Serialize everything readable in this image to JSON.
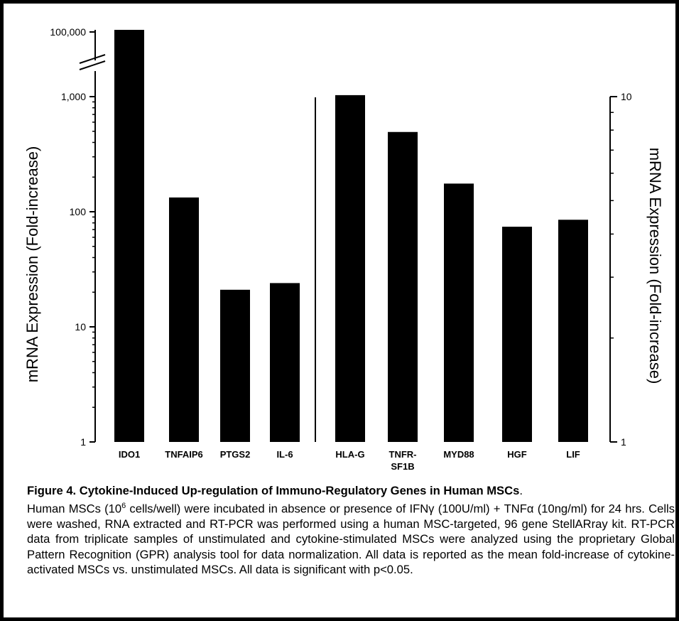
{
  "chart_data": {
    "type": "bar",
    "ylabel_left": "mRNA Expression (Fold-increase)",
    "ylabel_right": "mRNA Expression (Fold-increase)",
    "y_scale": "log",
    "left_ticks": [
      "1",
      "10",
      "100",
      "1,000",
      "100,000"
    ],
    "right_ticks": [
      "1",
      "10"
    ],
    "axis_break": true,
    "groups": [
      {
        "axis": "left",
        "ylim": [
          1,
          1000
        ],
        "categories": [
          "IDO1",
          "TNFAIP6",
          "PTGS2",
          "IL-6"
        ],
        "values": [
          100000,
          133,
          21,
          24
        ]
      },
      {
        "axis": "right",
        "ylim": [
          1,
          10
        ],
        "categories": [
          "HLA-G",
          "TNFR-\nSF1B",
          "MYD88",
          "HGF",
          "LIF"
        ],
        "values": [
          10.1,
          7.9,
          5.6,
          4.2,
          4.4
        ]
      }
    ],
    "bar_color": "#000000",
    "grid": false,
    "legend": "none"
  },
  "caption": {
    "title": "Figure 4. Cytokine-Induced Up-regulation of Immuno-Regulatory Genes in Human MSCs",
    "title_end": ".",
    "text_1": "Human MSCs (10",
    "superscript": "6",
    "text_2": " cells/well) were incubated in absence or presence of IFNγ (100U/ml) + TNFα (10ng/ml) for 24 hrs. Cells were washed, RNA extracted and RT-PCR was performed using a human MSC-targeted, 96 gene StellARray kit. RT-PCR data from triplicate samples of unstimulated and cytokine-stimulated MSCs were analyzed using the proprietary Global Pattern Recognition (GPR) analysis tool for data normalization. All data is reported as the mean fold-increase of cytokine-activated MSCs vs. unstimulated MSCs. All data is significant with p<0.05."
  }
}
